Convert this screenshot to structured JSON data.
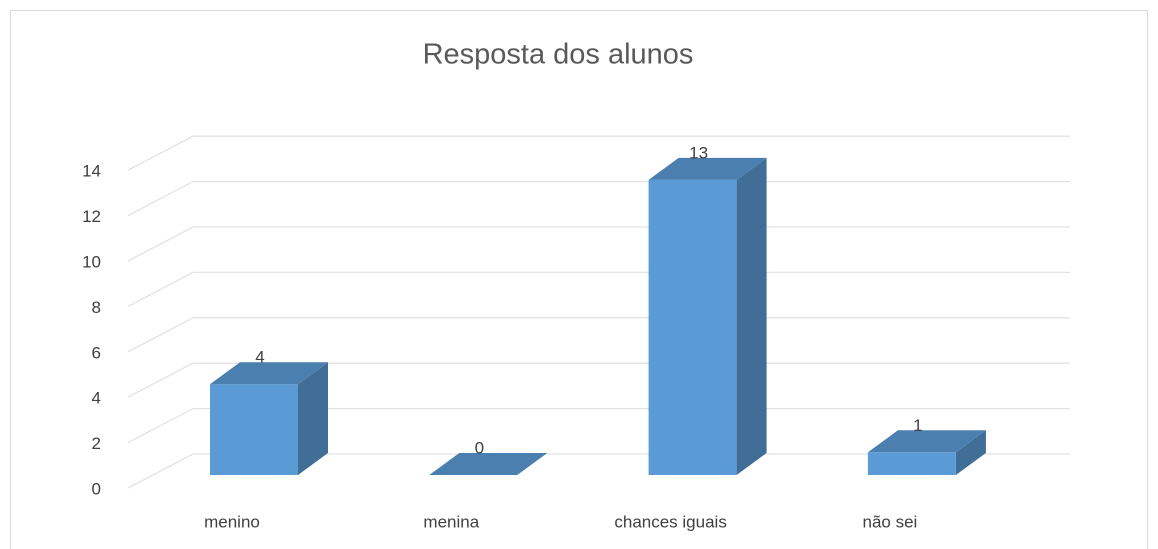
{
  "chart_data": {
    "type": "bar3d",
    "title": "Resposta dos alunos",
    "categories": [
      "menino",
      "menina",
      "chances iguais",
      "não sei"
    ],
    "values": [
      4,
      0,
      13,
      1
    ],
    "color": "#5b9bd5",
    "ylim": [
      0,
      14
    ],
    "yticks": [
      0,
      2,
      4,
      6,
      8,
      10,
      12,
      14
    ],
    "grid": true
  }
}
